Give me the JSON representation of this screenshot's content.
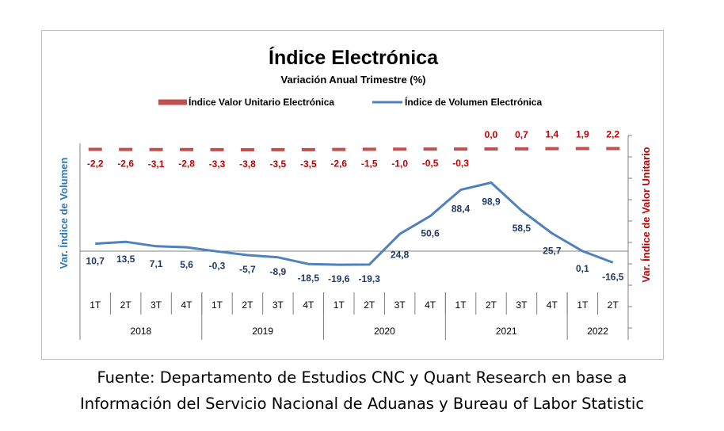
{
  "chart_data": {
    "type": "line",
    "title": "Índice Electrónica",
    "subtitle": "Variación Anual Trimestre  (%)",
    "ylabel_left": "Var. Índice de Volumen",
    "ylabel_right": "Var. Índice de Valor Unitario",
    "legend_position": "top",
    "categories": [
      "1T",
      "2T",
      "3T",
      "4T",
      "1T",
      "2T",
      "3T",
      "4T",
      "1T",
      "2T",
      "3T",
      "4T",
      "1T",
      "2T",
      "3T",
      "4T",
      "1T",
      "2T"
    ],
    "years": [
      {
        "label": "2018",
        "quarters": 4
      },
      {
        "label": "2019",
        "quarters": 4
      },
      {
        "label": "2020",
        "quarters": 4
      },
      {
        "label": "2021",
        "quarters": 4
      },
      {
        "label": "2022",
        "quarters": 2
      }
    ],
    "series": [
      {
        "name": "Índice Valor Unitario Electrónica",
        "style": "dashed",
        "axis": "right",
        "color": "#c0504d",
        "values": [
          -2.2,
          -2.6,
          -3.1,
          -2.8,
          -3.3,
          -3.8,
          -3.5,
          -3.5,
          -2.6,
          -1.5,
          -1.0,
          -0.5,
          -0.3,
          0.0,
          0.7,
          1.4,
          1.9,
          2.2
        ],
        "labels": [
          "-2,2",
          "-2,6",
          "-3,1",
          "-2,8",
          "-3,3",
          "-3,8",
          "-3,5",
          "-3,5",
          "-2,6",
          "-1,5",
          "-1,0",
          "-0,5",
          "-0,3",
          "0,0",
          "0,7",
          "1,4",
          "1,9",
          "2,2"
        ]
      },
      {
        "name": "Índice de Volumen Electrónica",
        "style": "solid",
        "axis": "left",
        "color": "#4f81bd",
        "values": [
          10.7,
          13.5,
          7.1,
          5.6,
          -0.3,
          -5.7,
          -8.9,
          -18.5,
          -19.6,
          -19.3,
          24.8,
          50.6,
          88.4,
          98.9,
          58.5,
          25.7,
          0.1,
          -16.5
        ],
        "labels": [
          "10,7",
          "13,5",
          "7,1",
          "5,6",
          "-0,3",
          "-5,7",
          "-8,9",
          "-18,5",
          "-19,6",
          "-19,3",
          "24,8",
          "50,6",
          "88,4",
          "98,9",
          "58,5",
          "25,7",
          "0,1",
          "-16,5"
        ]
      }
    ]
  },
  "source_note": {
    "line1": "Fuente: Departamento de Estudios CNC y Quant Research en base a",
    "line2": "Información del Servicio Nacional de Aduanas y Bureau of Labor Statistic"
  },
  "colors": {
    "volume_line": "#4f81bd",
    "unit_value_line": "#c0504d",
    "volume_axis_title": "#2e75b6",
    "unit_axis_title": "#c00000",
    "volume_label": "#1f3864",
    "unit_label": "#c00000"
  }
}
